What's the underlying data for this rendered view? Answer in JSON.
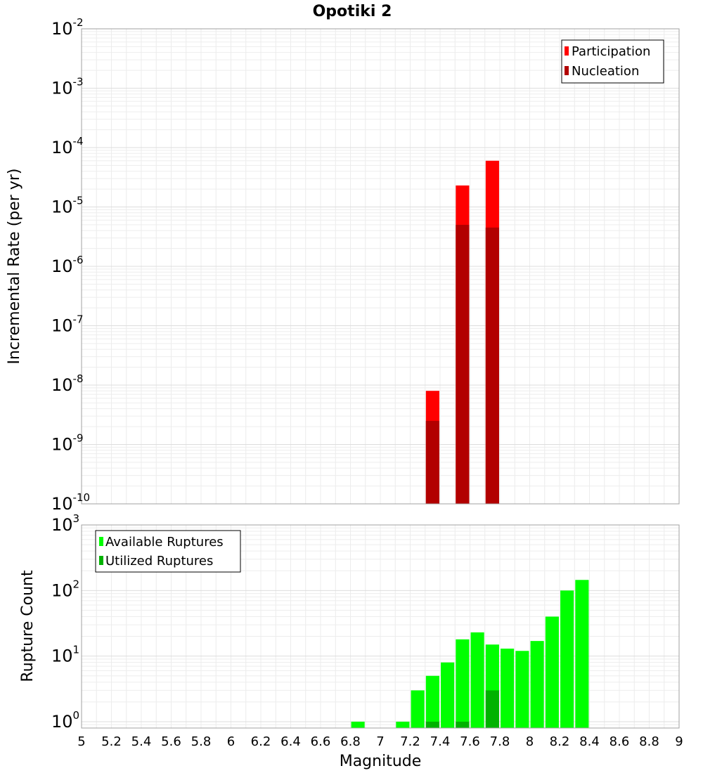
{
  "chart_data": [
    {
      "type": "bar",
      "title": "Opotiki 2",
      "ylabel": "Incremental Rate (per yr)",
      "xlabel": "",
      "yscale": "log",
      "ylim": [
        1e-10,
        0.01
      ],
      "xlim": [
        5,
        9
      ],
      "ytick_exponents": [
        -10,
        -9,
        -8,
        -7,
        -6,
        -5,
        -4,
        -3,
        -2
      ],
      "grid": true,
      "legend_position": "top-right",
      "bar_width": 0.09,
      "series": [
        {
          "name": "Participation",
          "color": "#ff0000",
          "points": [
            {
              "x": 7.35,
              "y": 8e-09
            },
            {
              "x": 7.55,
              "y": 2.3e-05
            },
            {
              "x": 7.75,
              "y": 6e-05
            }
          ]
        },
        {
          "name": "Nucleation",
          "color": "#b20000",
          "points": [
            {
              "x": 7.35,
              "y": 2.5e-09
            },
            {
              "x": 7.55,
              "y": 5e-06
            },
            {
              "x": 7.75,
              "y": 4.5e-06
            }
          ]
        }
      ]
    },
    {
      "type": "bar",
      "title": "",
      "ylabel": "Rupture Count",
      "xlabel": "Magnitude",
      "yscale": "log",
      "ylim": [
        0.8,
        1000
      ],
      "xlim": [
        5,
        9
      ],
      "ytick_exponents": [
        0,
        1,
        2,
        3
      ],
      "xticks": [
        "5",
        "5.2",
        "5.4",
        "5.6",
        "5.8",
        "6",
        "6.2",
        "6.4",
        "6.6",
        "6.8",
        "7",
        "7.2",
        "7.4",
        "7.6",
        "7.8",
        "8",
        "8.2",
        "8.4",
        "8.6",
        "8.8",
        "9"
      ],
      "grid": true,
      "legend_position": "top-left",
      "bar_width": 0.09,
      "series": [
        {
          "name": "Available Ruptures",
          "color": "#00ff00",
          "points": [
            {
              "x": 6.85,
              "y": 1
            },
            {
              "x": 7.15,
              "y": 1
            },
            {
              "x": 7.25,
              "y": 3
            },
            {
              "x": 7.35,
              "y": 5
            },
            {
              "x": 7.45,
              "y": 8
            },
            {
              "x": 7.55,
              "y": 18
            },
            {
              "x": 7.65,
              "y": 23
            },
            {
              "x": 7.75,
              "y": 15
            },
            {
              "x": 7.85,
              "y": 13
            },
            {
              "x": 7.95,
              "y": 12
            },
            {
              "x": 8.05,
              "y": 17
            },
            {
              "x": 8.15,
              "y": 40
            },
            {
              "x": 8.25,
              "y": 100
            },
            {
              "x": 8.35,
              "y": 145
            }
          ]
        },
        {
          "name": "Utilized Ruptures",
          "color": "#00b200",
          "points": [
            {
              "x": 7.35,
              "y": 1
            },
            {
              "x": 7.55,
              "y": 1
            },
            {
              "x": 7.75,
              "y": 3
            }
          ]
        }
      ]
    }
  ]
}
